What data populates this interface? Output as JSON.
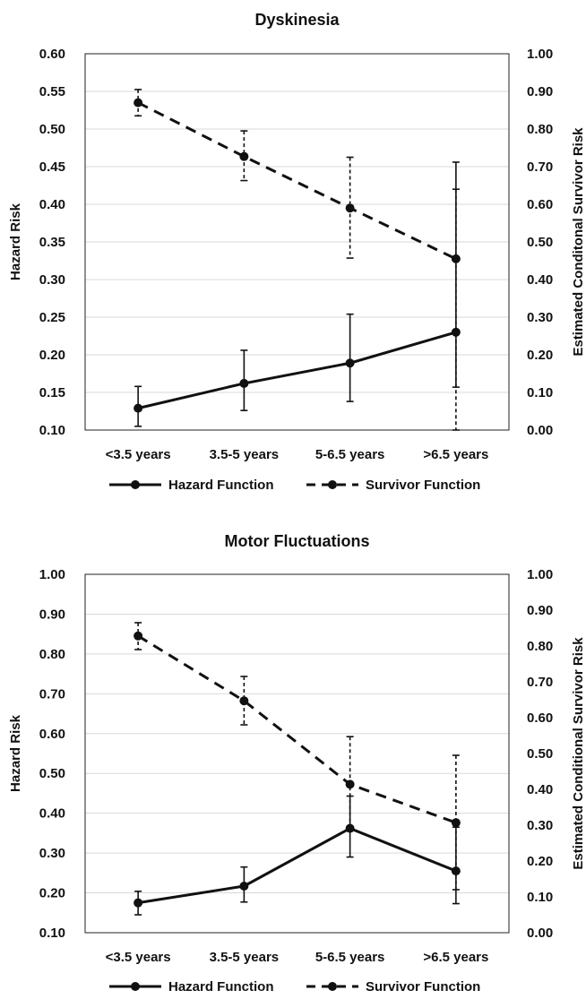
{
  "chart_data": [
    {
      "type": "line",
      "title": "Dyskinesia",
      "categories": [
        "<3.5 years",
        "3.5-5 years",
        "5-6.5 years",
        ">6.5 years"
      ],
      "ylabel": "Hazard Risk",
      "y2label": "Estimated Conditonal Survivor Risk",
      "ylim": [
        0.1,
        0.6
      ],
      "y2lim": [
        0.0,
        1.0
      ],
      "yticks": [
        "0.10",
        "0.15",
        "0.20",
        "0.25",
        "0.30",
        "0.35",
        "0.40",
        "0.45",
        "0.50",
        "0.55",
        "0.60"
      ],
      "y2ticks": [
        "0.00",
        "0.10",
        "0.20",
        "0.30",
        "0.40",
        "0.50",
        "0.60",
        "0.70",
        "0.80",
        "0.90",
        "1.00"
      ],
      "grid": "horizontal",
      "legend_position": "bottom",
      "series": [
        {
          "name": "Hazard Function",
          "axis": "left",
          "style": "solid",
          "values": [
            0.129,
            0.162,
            0.189,
            0.23
          ],
          "error_low": [
            0.105,
            0.126,
            0.138,
            0.157
          ],
          "error_high": [
            0.158,
            0.206,
            0.254,
            0.456
          ]
        },
        {
          "name": "Survivor Function",
          "axis": "right",
          "style": "dashed",
          "values": [
            0.87,
            0.727,
            0.59,
            0.455
          ],
          "error_low": [
            0.835,
            0.663,
            0.457,
            0.0
          ],
          "error_high": [
            0.905,
            0.795,
            0.725,
            0.64
          ]
        }
      ]
    },
    {
      "type": "line",
      "title": "Motor Fluctuations",
      "categories": [
        "<3.5 years",
        "3.5-5 years",
        "5-6.5 years",
        ">6.5 years"
      ],
      "ylabel": "Hazard Risk",
      "y2label": "Estimated Conditional Survivor Risk",
      "ylim": [
        0.1,
        1.0
      ],
      "y2lim": [
        0.0,
        1.0
      ],
      "yticks": [
        "0.10",
        "0.20",
        "0.30",
        "0.40",
        "0.50",
        "0.60",
        "0.70",
        "0.80",
        "0.90",
        "1.00"
      ],
      "y2ticks": [
        "0.00",
        "0.10",
        "0.20",
        "0.30",
        "0.40",
        "0.50",
        "0.60",
        "0.70",
        "0.80",
        "0.90",
        "1.00"
      ],
      "grid": "horizontal",
      "legend_position": "bottom",
      "series": [
        {
          "name": "Hazard Function",
          "axis": "left",
          "style": "solid",
          "values": [
            0.175,
            0.217,
            0.362,
            0.255
          ],
          "error_low": [
            0.145,
            0.177,
            0.29,
            0.173
          ],
          "error_high": [
            0.204,
            0.265,
            0.443,
            0.365
          ]
        },
        {
          "name": "Survivor Function",
          "axis": "right",
          "style": "dashed",
          "values": [
            0.828,
            0.647,
            0.414,
            0.307
          ],
          "error_low": [
            0.79,
            0.58,
            0.295,
            0.12
          ],
          "error_high": [
            0.865,
            0.715,
            0.547,
            0.495
          ]
        }
      ]
    }
  ]
}
